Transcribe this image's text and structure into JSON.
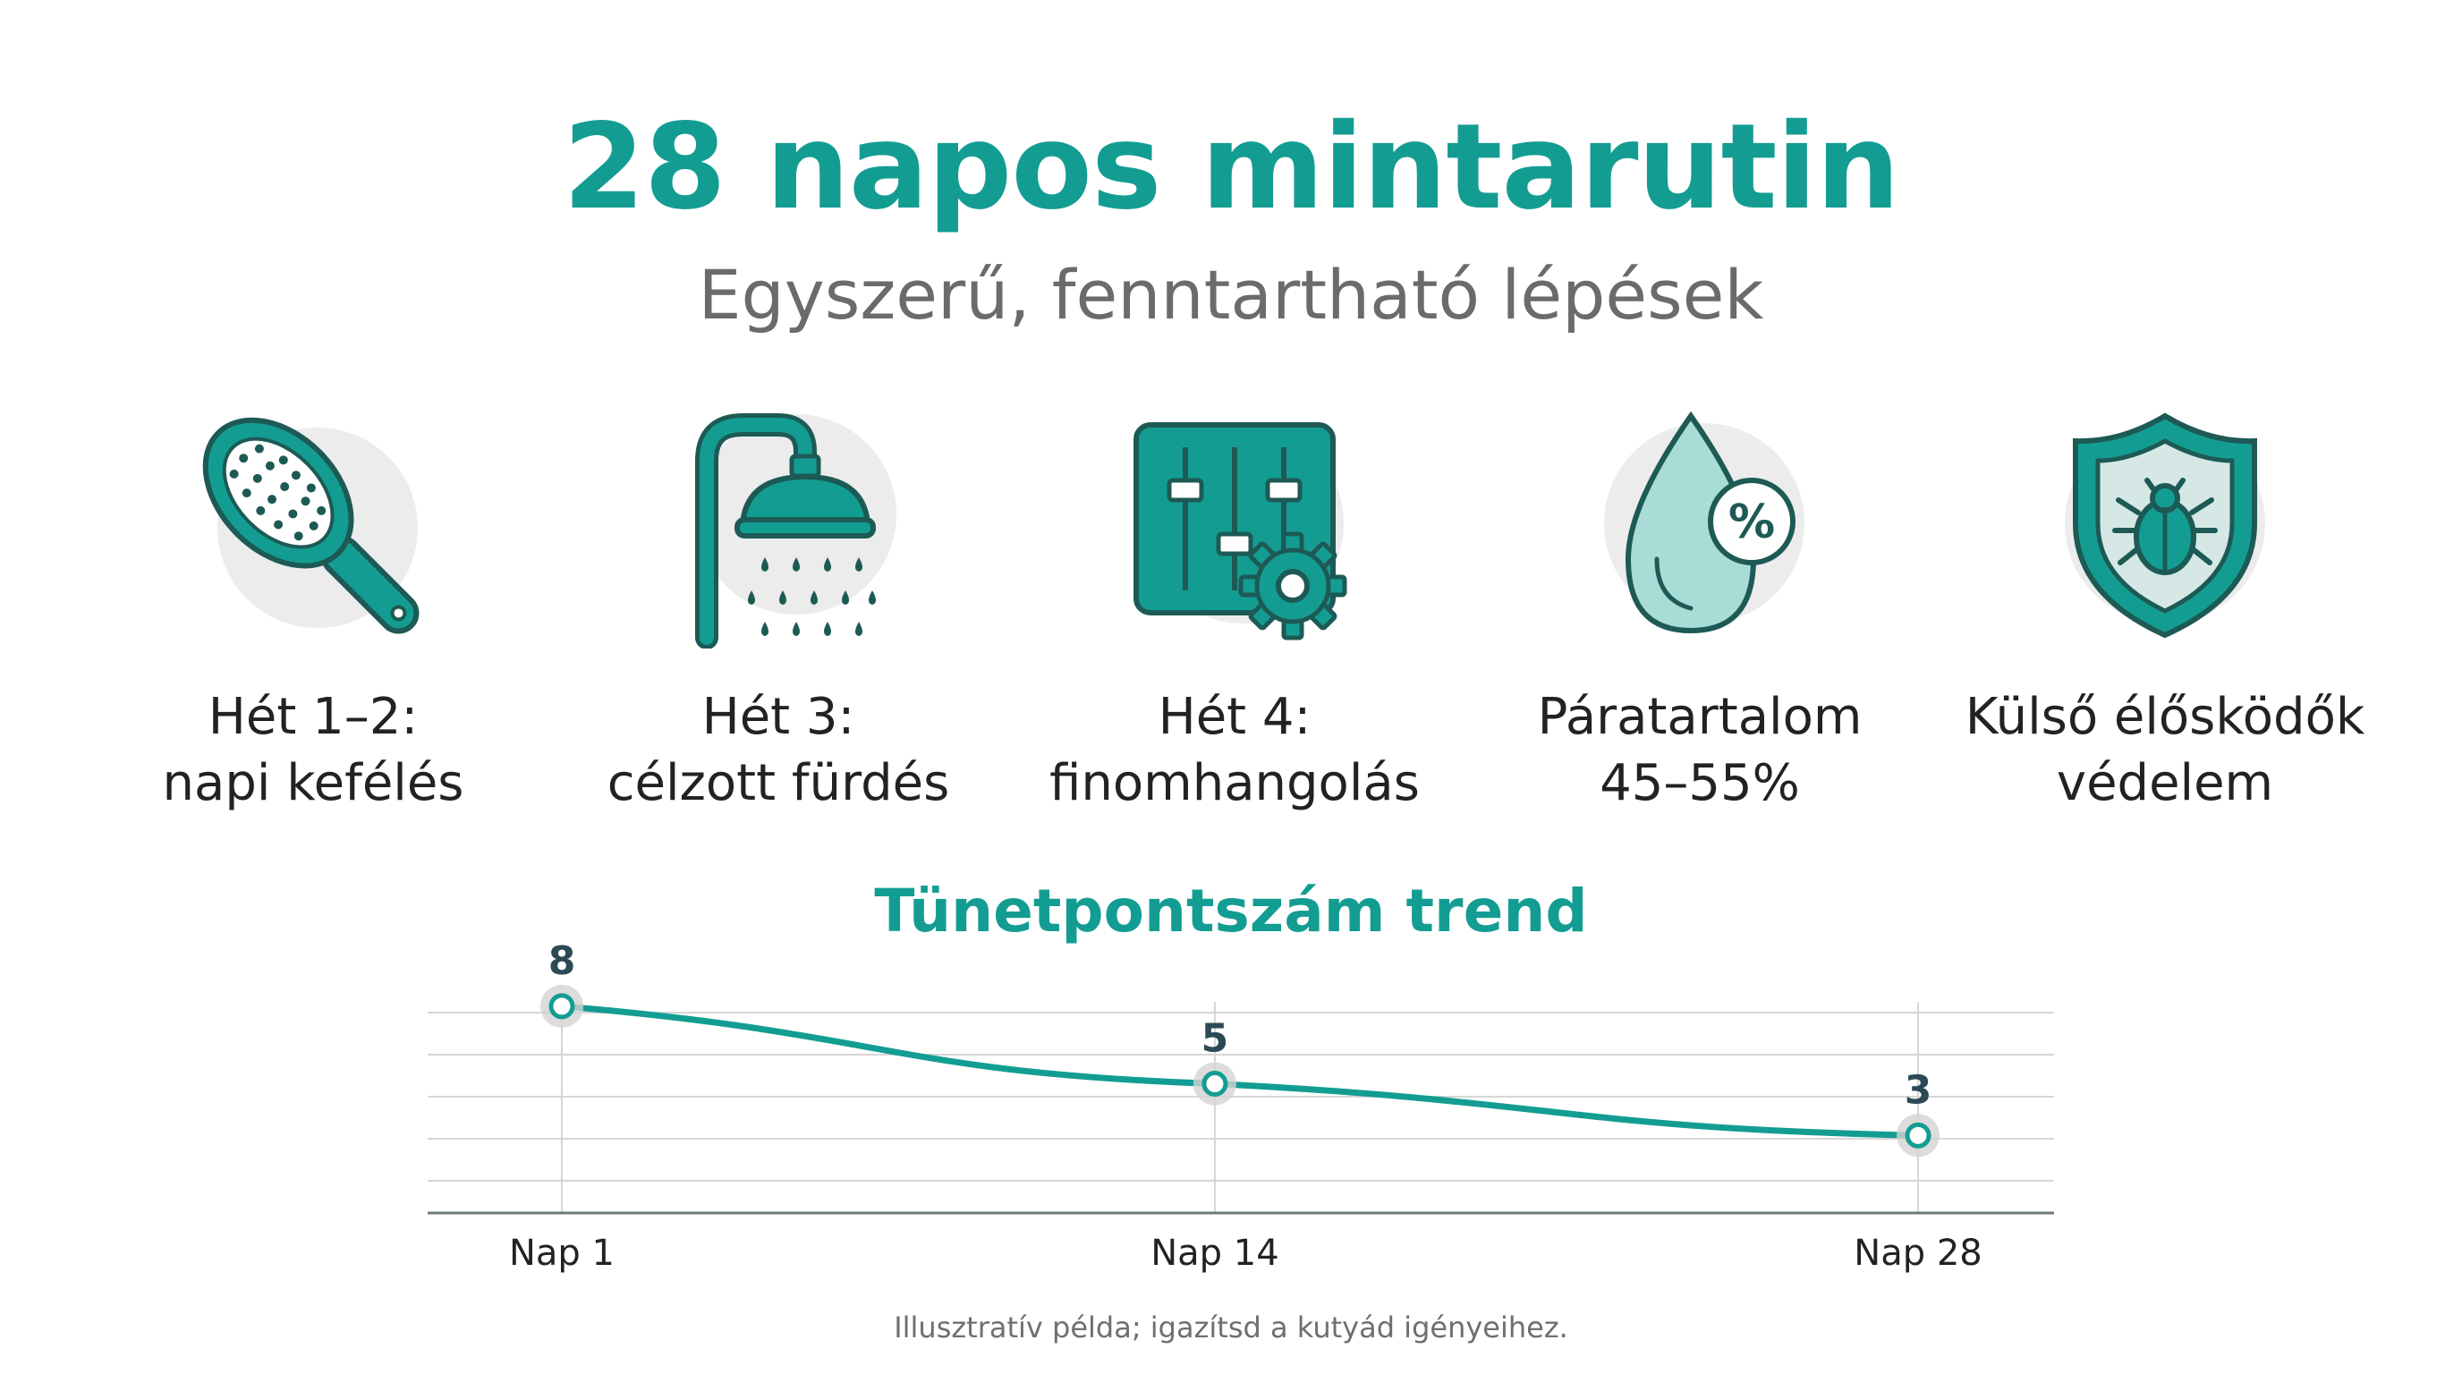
{
  "header": {
    "title": "28 napos mintarutin",
    "subtitle": "Egyszerű, fenntartható lépések"
  },
  "steps": [
    {
      "icon": "hairbrush-icon",
      "line1": "Hét 1–2:",
      "line2": "napi kefélés"
    },
    {
      "icon": "shower-icon",
      "line1": "Hét 3:",
      "line2": "célzott fürdés"
    },
    {
      "icon": "sliders-gear-icon",
      "line1": "Hét 4:",
      "line2": "finomhangolás"
    },
    {
      "icon": "droplet-percent-icon",
      "line1": "Páratartalom",
      "line2": "45–55%"
    },
    {
      "icon": "shield-bug-icon",
      "line1": "Külső élősködők",
      "line2": "védelem"
    }
  ],
  "colors": {
    "accent": "#139d92",
    "dark": "#1d5a55",
    "light_teal": "#a8dcd6",
    "halo": "#ececec"
  },
  "chart_data": {
    "type": "line",
    "title": "Tünetpontszám trend",
    "x": [
      "Nap 1",
      "Nap 14",
      "Nap 28"
    ],
    "x_values": [
      1,
      14,
      28
    ],
    "series": [
      {
        "values": [
          8,
          5,
          3
        ]
      }
    ],
    "data_labels": [
      "8",
      "5",
      "3"
    ],
    "ylim": [
      0,
      9
    ],
    "grid": true,
    "legend": "none"
  },
  "footnote": "Illusztratív példa; igazítsd a kutyád igényeihez."
}
